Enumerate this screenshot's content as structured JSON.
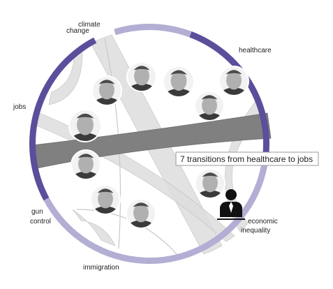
{
  "diagram": {
    "topics": [
      {
        "id": "climate",
        "lines": [
          "climate",
          "change"
        ],
        "color": "#b3aed3",
        "start": 0.0,
        "end": 0.66
      },
      {
        "id": "healthcare",
        "lines": [
          "healthcare"
        ],
        "color": "#5b4e9b",
        "start": 0.66,
        "end": 1.96
      },
      {
        "id": "economic",
        "lines": [
          "economic",
          "inequality"
        ],
        "color": "#b3aed3",
        "start": 1.96,
        "end": 3.0
      },
      {
        "id": "immigration",
        "lines": [
          "immigration"
        ],
        "color": "#b3aed3",
        "start": 3.0,
        "end": 3.48
      },
      {
        "id": "gun",
        "lines": [
          "gun",
          "control"
        ],
        "color": "#b3aed3",
        "start": 3.48,
        "end": 4.52
      },
      {
        "id": "jobs",
        "lines": [
          "jobs"
        ],
        "color": "#5b4e9b",
        "start": 4.52,
        "end": 6.1
      }
    ],
    "candidates": [
      {
        "id": "candidate-1"
      },
      {
        "id": "candidate-2"
      },
      {
        "id": "candidate-3"
      },
      {
        "id": "candidate-4"
      },
      {
        "id": "candidate-5"
      },
      {
        "id": "candidate-6"
      },
      {
        "id": "candidate-7"
      },
      {
        "id": "candidate-8"
      },
      {
        "id": "candidate-9"
      },
      {
        "id": "candidate-10"
      },
      {
        "id": "candidate-11"
      }
    ],
    "chord_colors": {
      "highlight": "#808080",
      "normal": "#dedede",
      "stroke": "#b5b5b5"
    }
  },
  "tooltip": {
    "text": "7 transitions from healthcare to jobs"
  }
}
